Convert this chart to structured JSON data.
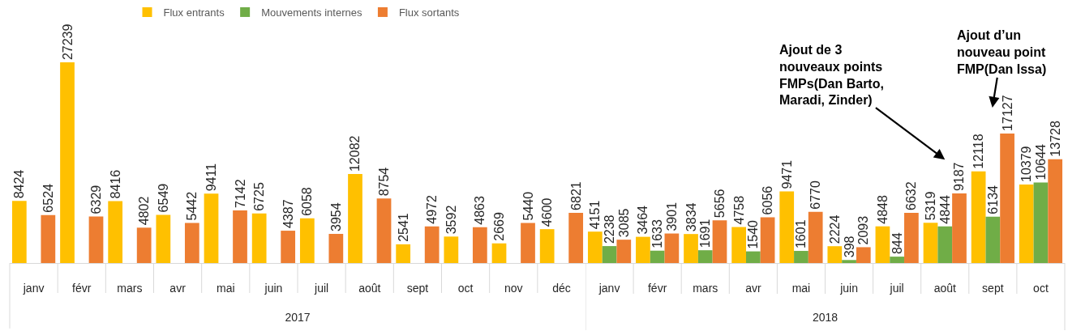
{
  "chart_data": [
    {
      "type": "bar",
      "xlabel": "2017",
      "categories": [
        "janv",
        "févr",
        "mars",
        "avr",
        "mai",
        "juin",
        "juil",
        "août",
        "sept",
        "oct",
        "nov",
        "déc"
      ],
      "series": [
        {
          "name": "Flux entrants",
          "color": "#ffc000",
          "values": [
            8424,
            27239,
            8416,
            6549,
            9411,
            6725,
            6058,
            12082,
            2541,
            3592,
            2669,
            4600
          ]
        },
        {
          "name": "Mouvements internes",
          "color": "#70ad47",
          "values": [
            null,
            null,
            null,
            null,
            null,
            null,
            null,
            null,
            null,
            null,
            null,
            null
          ]
        },
        {
          "name": "Flux sortants",
          "color": "#ed7d31",
          "values": [
            6524,
            6329,
            4802,
            5442,
            7142,
            4387,
            3954,
            8754,
            4972,
            4863,
            5440,
            6821
          ]
        }
      ],
      "data_labels": true,
      "grid": false,
      "legend": "top",
      "tick_labels": "x"
    },
    {
      "type": "bar",
      "xlabel": "2018",
      "categories": [
        "janv",
        "févr",
        "mars",
        "avr",
        "mai",
        "juin",
        "juil",
        "août",
        "sept",
        "oct"
      ],
      "series": [
        {
          "color": "#ffc000",
          "values": [
            4151,
            3464,
            3834,
            4758,
            9471,
            2224,
            4848,
            5319,
            12118,
            10379
          ]
        },
        {
          "color": "#70ad47",
          "values": [
            2238,
            1633,
            1691,
            1540,
            1601,
            398,
            844,
            4844,
            6134,
            10644
          ]
        },
        {
          "color": "#ed7d31",
          "values": [
            3085,
            3901,
            5656,
            6056,
            6770,
            2093,
            6632,
            9187,
            17127,
            13728
          ]
        }
      ],
      "data_labels": true,
      "grid": false,
      "tick_labels": "x",
      "annotations": [
        "Ajout de 3\nnouveaux points\nFMPs(Dan Barto,\nMaradi, Zinder)",
        "Ajout d’un\nnouveau point\nFMP(Dan Issa)"
      ]
    }
  ]
}
